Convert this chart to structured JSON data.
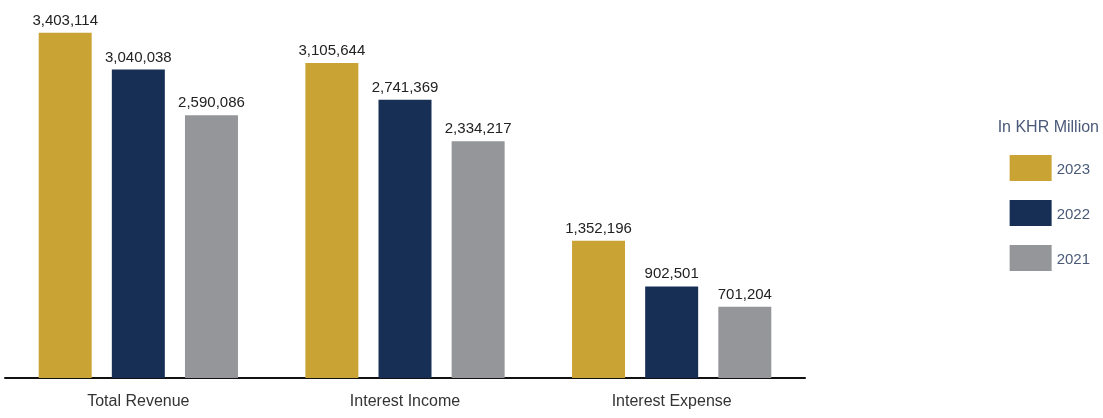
{
  "chart_data": {
    "type": "bar",
    "legend_title": "In KHR Million",
    "categories": [
      "Total Revenue",
      "Interest Income",
      "Interest Expense"
    ],
    "series": [
      {
        "name": "2023",
        "color": "#c9a434",
        "values": [
          3403114,
          3105644,
          1352196
        ],
        "value_labels": [
          "3,403,114",
          "3,105,644",
          "1,352,196"
        ]
      },
      {
        "name": "2022",
        "color": "#172f55",
        "values": [
          3040038,
          2741369,
          902501
        ],
        "value_labels": [
          "3,040,038",
          "2,741,369",
          "902,501"
        ]
      },
      {
        "name": "2021",
        "color": "#959699",
        "values": [
          2590086,
          2334217,
          701204
        ],
        "value_labels": [
          "2,590,086",
          "2,334,217",
          "701,204"
        ]
      }
    ],
    "grid": false,
    "legend": "right"
  }
}
